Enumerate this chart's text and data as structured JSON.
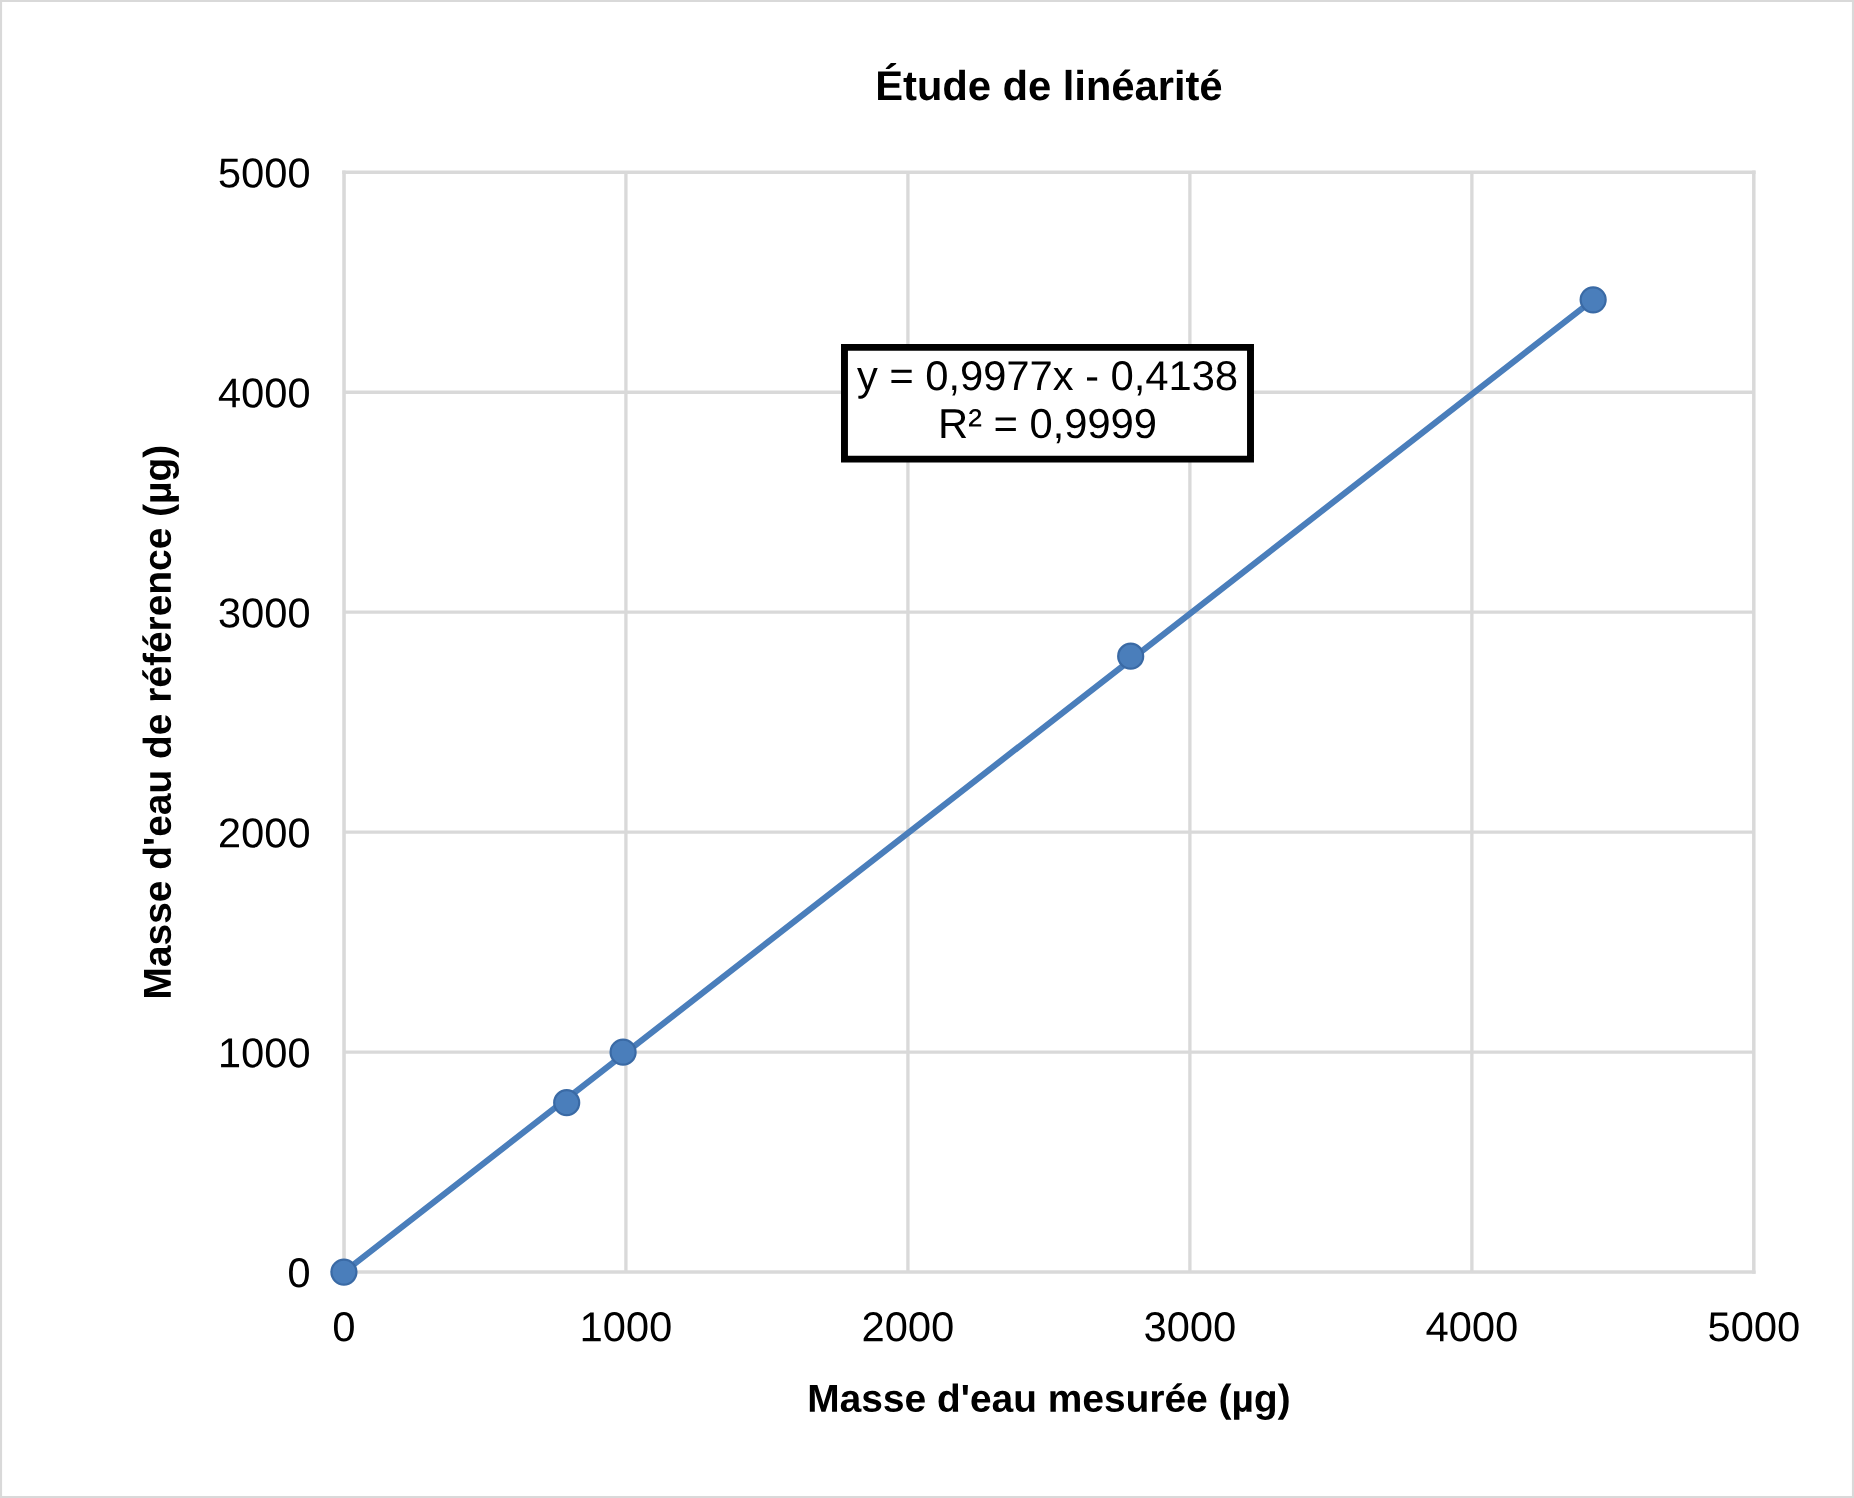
{
  "chart_data": {
    "type": "scatter",
    "title": "Étude de linéarité",
    "xlabel": "Masse d'eau mesurée (µg)",
    "ylabel": "Masse d'eau de référence (µg)",
    "xlim": [
      0,
      5000
    ],
    "ylim": [
      0,
      5000
    ],
    "xticks": [
      0,
      1000,
      2000,
      3000,
      4000,
      5000
    ],
    "yticks": [
      0,
      1000,
      2000,
      3000,
      4000,
      5000
    ],
    "grid": true,
    "marker": "circle",
    "series": [
      {
        "color": "#4a7ebb",
        "x": [
          0,
          790,
          990,
          2790,
          4430
        ],
        "values": [
          0,
          770,
          1000,
          2800,
          4420
        ]
      },
      {
        "type": "line",
        "marker": "none",
        "color": "#4a7ebb",
        "x": [
          0,
          4430
        ],
        "values": [
          0,
          4420
        ]
      }
    ],
    "annotations": [
      "y = 0,9977x - 0,4138\nR² = 0,9999"
    ]
  }
}
